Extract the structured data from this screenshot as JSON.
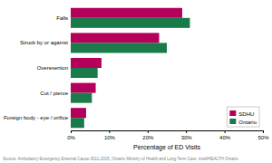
{
  "chart_data": {
    "type": "bar",
    "orientation": "horizontal",
    "categories": [
      "Falls",
      "Struck by or against",
      "Overexertion",
      "Cut / pierce",
      "Foreign body - eye / orifice"
    ],
    "series": [
      {
        "name": "SDHU",
        "color": "#b5005b",
        "values": [
          29,
          23,
          8,
          6.5,
          4
        ]
      },
      {
        "name": "Ontario",
        "color": "#1a7a4a",
        "values": [
          31,
          25,
          7,
          5.5,
          3.5
        ]
      }
    ],
    "xlabel": "Percentage of ED Visits",
    "xlim": [
      0,
      50
    ],
    "xticks": [
      {
        "value": 0,
        "label": "0%"
      },
      {
        "value": 10,
        "label": "10%"
      },
      {
        "value": 20,
        "label": "20%"
      },
      {
        "value": 30,
        "label": "30%"
      },
      {
        "value": 40,
        "label": "40%"
      },
      {
        "value": 50,
        "label": "50%"
      }
    ],
    "legend": "lower right",
    "grid": false,
    "annotations": [
      "Source: Ambulatory Emergency External Cause 2011-2015, Ontario Ministry of Health and Long-Term Care, intelliHEALTH Ontario"
    ]
  }
}
